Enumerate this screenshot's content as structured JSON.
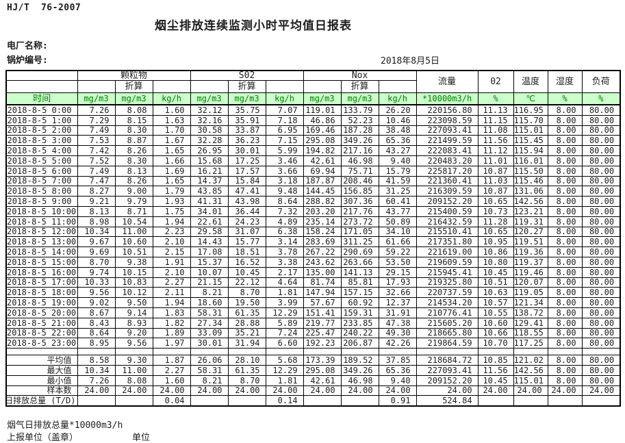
{
  "meta": {
    "standard": "HJ/T  76-2007",
    "title": "烟尘排放连续监测小时平均值日报表",
    "plant_label": "电厂名称:",
    "boiler_label": "锅炉编号:",
    "date": "2018年8月5日"
  },
  "colors": {
    "header_bg": "#ccffcc",
    "header_text": "#008000"
  },
  "table": {
    "time_label": "时间",
    "converted_label": "折算",
    "group_labels": [
      "颗粒物",
      "S02",
      "Nox"
    ],
    "wide_headers": [
      "流量",
      "02",
      "温度",
      "湿度",
      "负荷"
    ],
    "units": [
      "mg/m3",
      "mg/m3",
      "kg/h",
      "mg/m3",
      "mg/m3",
      "kg/h",
      "mg/m3",
      "mg/m3",
      "kg/h",
      "*10000m3/h",
      "%",
      "℃",
      "%",
      "%"
    ],
    "rows": [
      {
        "time": "2018-8-5 0:00",
        "values": [
          "7.26",
          "8.08",
          "1.60",
          "32.12",
          "35.75",
          "7.07",
          "119.01",
          "133.79",
          "26.20",
          "220156.80",
          "11.13",
          "116.95",
          "8.00",
          "80.00"
        ]
      },
      {
        "time": "2018-8-5 1:00",
        "values": [
          "7.29",
          "8.15",
          "1.63",
          "32.16",
          "35.91",
          "7.18",
          "46.86",
          "52.23",
          "10.46",
          "223098.59",
          "11.15",
          "115.70",
          "8.00",
          "80.00"
        ]
      },
      {
        "time": "2018-8-5 2:00",
        "values": [
          "7.49",
          "8.30",
          "1.70",
          "30.58",
          "33.87",
          "6.95",
          "169.46",
          "187.28",
          "38.48",
          "227093.41",
          "11.08",
          "115.01",
          "8.00",
          "80.00"
        ]
      },
      {
        "time": "2018-8-5 3:00",
        "values": [
          "7.53",
          "8.87",
          "1.67",
          "32.28",
          "36.23",
          "7.15",
          "295.08",
          "349.26",
          "65.36",
          "221499.59",
          "11.56",
          "115.45",
          "8.00",
          "80.00"
        ]
      },
      {
        "time": "2018-8-5 4:00",
        "values": [
          "7.42",
          "8.26",
          "1.65",
          "26.95",
          "30.01",
          "5.99",
          "194.82",
          "217.16",
          "43.27",
          "222083.41",
          "11.12",
          "115.94",
          "8.00",
          "80.00"
        ]
      },
      {
        "time": "2018-8-5 5:00",
        "values": [
          "7.52",
          "8.30",
          "1.66",
          "15.68",
          "17.25",
          "3.46",
          "42.61",
          "46.98",
          "9.40",
          "220483.20",
          "11.01",
          "116.01",
          "8.00",
          "80.00"
        ]
      },
      {
        "time": "2018-8-5 6:00",
        "values": [
          "7.49",
          "8.13",
          "1.69",
          "16.21",
          "17.57",
          "3.66",
          "69.94",
          "75.71",
          "15.79",
          "225817.20",
          "10.87",
          "115.50",
          "8.00",
          "80.00"
        ]
      },
      {
        "time": "2018-8-5 7:00",
        "values": [
          "7.47",
          "8.26",
          "1.65",
          "14.37",
          "15.84",
          "3.18",
          "187.87",
          "208.46",
          "41.59",
          "221360.41",
          "11.03",
          "115.46",
          "8.00",
          "80.00"
        ]
      },
      {
        "time": "2018-8-5 8:00",
        "values": [
          "8.27",
          "9.00",
          "1.79",
          "43.85",
          "47.41",
          "9.48",
          "144.45",
          "156.85",
          "31.25",
          "216309.59",
          "10.87",
          "131.06",
          "8.00",
          "80.00"
        ]
      },
      {
        "time": "2018-8-5 9:00",
        "values": [
          "9.21",
          "9.79",
          "1.93",
          "41.31",
          "43.98",
          "8.64",
          "288.82",
          "307.36",
          "60.41",
          "209152.20",
          "10.65",
          "142.56",
          "8.00",
          "80.00"
        ]
      },
      {
        "time": "2018-8-5 10:00",
        "values": [
          "8.13",
          "8.71",
          "1.75",
          "34.01",
          "36.44",
          "7.32",
          "203.20",
          "217.76",
          "43.77",
          "215400.59",
          "10.73",
          "123.21",
          "8.00",
          "80.00"
        ]
      },
      {
        "time": "2018-8-5 11:00",
        "values": [
          "8.98",
          "10.54",
          "1.94",
          "22.61",
          "24.23",
          "4.89",
          "235.14",
          "273.72",
          "50.89",
          "216432.59",
          "11.28",
          "119.31",
          "8.00",
          "80.00"
        ]
      },
      {
        "time": "2018-8-5 12:00",
        "values": [
          "10.34",
          "11.00",
          "2.23",
          "29.58",
          "31.07",
          "6.38",
          "158.24",
          "171.05",
          "34.10",
          "215510.41",
          "10.65",
          "120.27",
          "8.00",
          "80.00"
        ]
      },
      {
        "time": "2018-8-5 13:00",
        "values": [
          "9.67",
          "10.60",
          "2.10",
          "14.43",
          "15.77",
          "3.14",
          "283.69",
          "311.25",
          "61.66",
          "217351.80",
          "10.95",
          "119.51",
          "8.00",
          "80.00"
        ]
      },
      {
        "time": "2018-8-5 14:00",
        "values": [
          "9.69",
          "10.51",
          "2.15",
          "17.08",
          "18.51",
          "3.78",
          "267.22",
          "290.69",
          "59.22",
          "221619.00",
          "10.86",
          "119.36",
          "8.00",
          "80.00"
        ]
      },
      {
        "time": "2018-8-5 15:00",
        "values": [
          "8.70",
          "9.38",
          "1.91",
          "15.37",
          "16.52",
          "3.38",
          "243.62",
          "263.66",
          "53.50",
          "219609.59",
          "10.80",
          "119.37",
          "8.00",
          "80.00"
        ]
      },
      {
        "time": "2018-8-5 16:00",
        "values": [
          "9.74",
          "10.15",
          "2.10",
          "10.07",
          "10.45",
          "2.17",
          "135.00",
          "141.13",
          "29.15",
          "215945.41",
          "10.45",
          "119.46",
          "8.00",
          "80.00"
        ]
      },
      {
        "time": "2018-8-5 17:00",
        "values": [
          "10.33",
          "10.83",
          "2.27",
          "21.15",
          "22.12",
          "4.64",
          "81.74",
          "85.81",
          "17.93",
          "219325.80",
          "10.51",
          "120.07",
          "8.00",
          "80.00"
        ]
      },
      {
        "time": "2018-8-5 18:00",
        "values": [
          "9.56",
          "10.12",
          "2.11",
          "8.21",
          "8.70",
          "1.81",
          "147.94",
          "157.15",
          "32.66",
          "220737.59",
          "10.63",
          "119.05",
          "8.00",
          "80.00"
        ]
      },
      {
        "time": "2018-8-5 19:00",
        "values": [
          "9.02",
          "9.50",
          "1.94",
          "18.60",
          "19.50",
          "3.99",
          "57.67",
          "60.92",
          "12.37",
          "214534.20",
          "10.57",
          "121.34",
          "8.00",
          "80.00"
        ]
      },
      {
        "time": "2018-8-5 20:00",
        "values": [
          "8.67",
          "9.14",
          "1.83",
          "58.31",
          "61.35",
          "12.29",
          "151.41",
          "159.31",
          "31.91",
          "210776.41",
          "10.55",
          "138.72",
          "8.00",
          "80.00"
        ]
      },
      {
        "time": "2018-8-5 21:00",
        "values": [
          "8.43",
          "8.93",
          "1.82",
          "27.34",
          "28.88",
          "5.89",
          "219.77",
          "233.85",
          "47.38",
          "215605.20",
          "10.60",
          "129.41",
          "8.00",
          "80.00"
        ]
      },
      {
        "time": "2018-8-5 22:00",
        "values": [
          "8.64",
          "9.20",
          "1.89",
          "33.09",
          "35.21",
          "7.24",
          "225.47",
          "240.22",
          "49.30",
          "218665.80",
          "10.66",
          "118.55",
          "8.00",
          "80.00"
        ]
      },
      {
        "time": "2018-8-5 23:00",
        "values": [
          "8.95",
          "9.56",
          "1.97",
          "30.01",
          "31.94",
          "6.60",
          "192.23",
          "206.87",
          "42.26",
          "219864.59",
          "10.70",
          "117.25",
          "8.00",
          "80.00"
        ]
      }
    ],
    "summary": [
      {
        "label": "平均值",
        "values": [
          "8.58",
          "9.30",
          "1.87",
          "26.06",
          "28.10",
          "5.68",
          "173.39",
          "189.52",
          "37.85",
          "218684.72",
          "10.85",
          "121.02",
          "8.00",
          "80.00"
        ]
      },
      {
        "label": "最大值",
        "values": [
          "10.34",
          "11.00",
          "2.27",
          "58.31",
          "61.35",
          "12.29",
          "295.08",
          "349.26",
          "65.36",
          "227093.41",
          "11.56",
          "142.56",
          "8.00",
          "80.00"
        ]
      },
      {
        "label": "最小值",
        "values": [
          "7.26",
          "8.08",
          "1.60",
          "8.21",
          "8.70",
          "1.81",
          "42.61",
          "46.98",
          "9.40",
          "209152.20",
          "10.45",
          "115.01",
          "8.00",
          "80.00"
        ]
      },
      {
        "label": "样本数",
        "values": [
          "24.00",
          "24.00",
          "24.00",
          "24.00",
          "24.00",
          "24.00",
          "24.00",
          "24.00",
          "24.00",
          "24.00",
          "24.00",
          "24.00",
          "24.00",
          "24.00"
        ]
      },
      {
        "label": "日排放总量 (T/D)",
        "values": [
          "",
          "",
          "0.04",
          "",
          "",
          "0.14",
          "",
          "",
          "0.91",
          "524.84",
          "",
          "",
          "",
          ""
        ]
      }
    ]
  },
  "footer": {
    "note": "烟气日排放总量*10000m3/h",
    "report_unit": "上报单位（盖章）",
    "unit": "单位"
  }
}
